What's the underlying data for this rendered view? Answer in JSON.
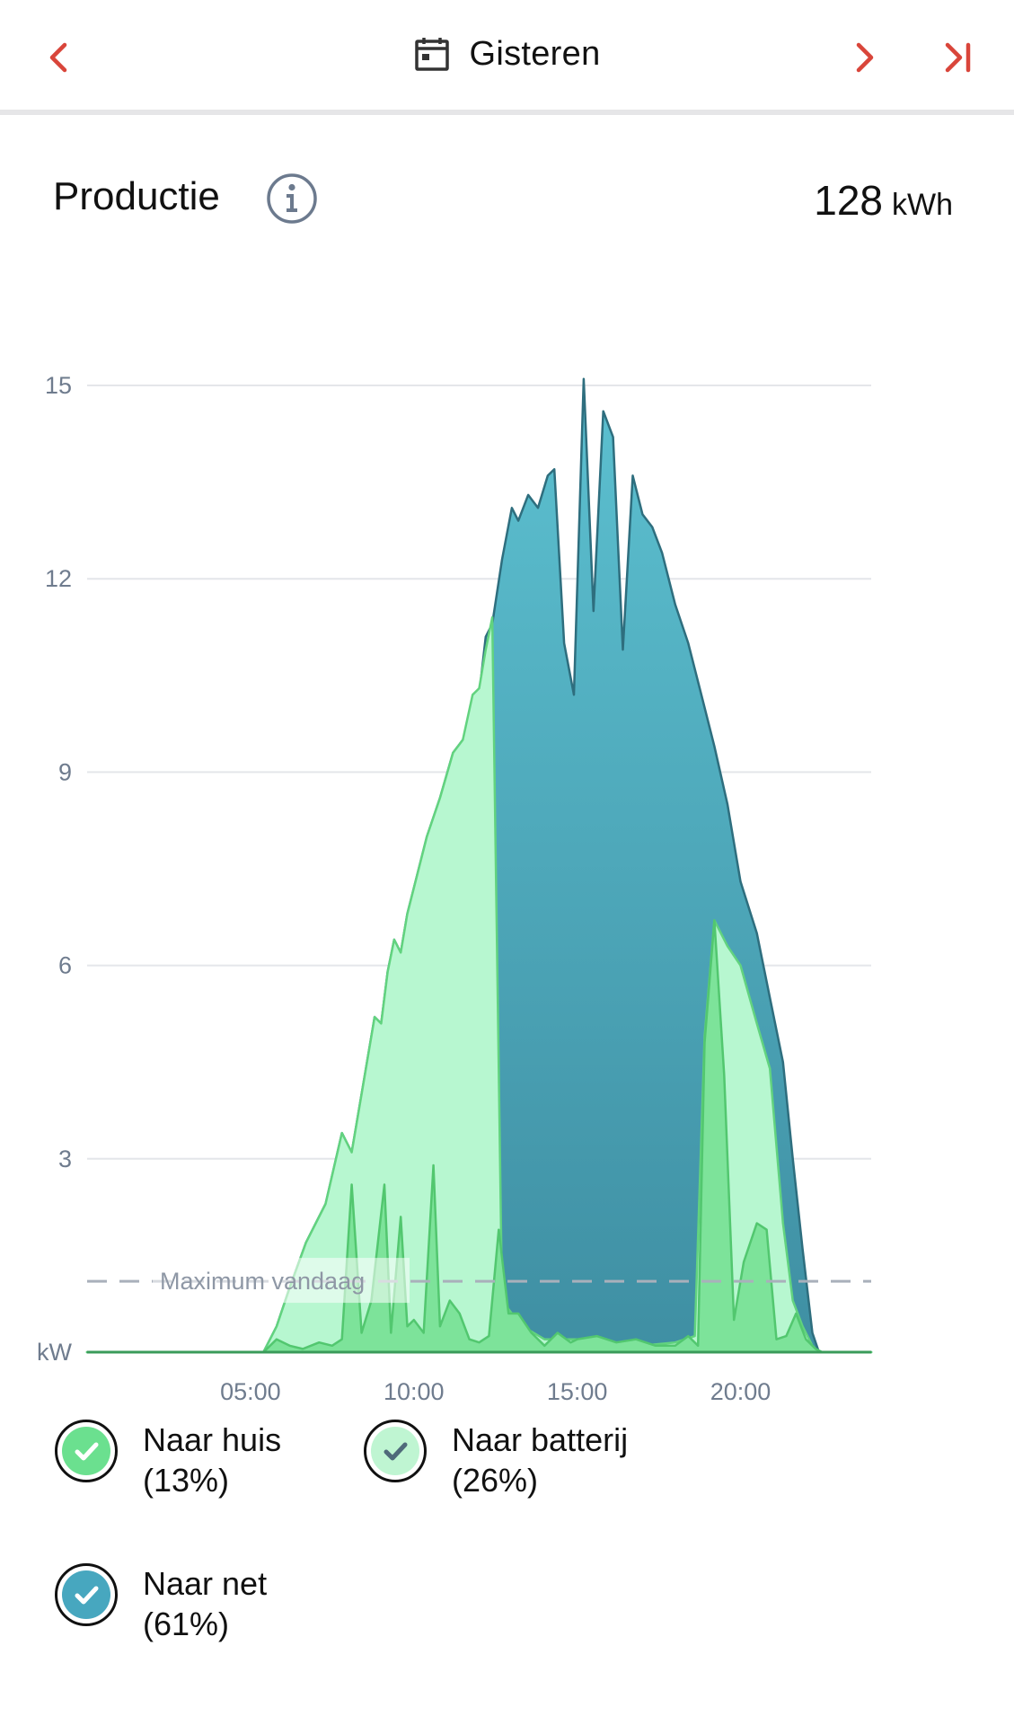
{
  "header": {
    "prev_icon": "chevron-left-icon",
    "date_icon": "calendar-icon",
    "date_label": "Gisteren",
    "next_icon": "chevron-right-icon",
    "last_icon": "skip-to-end-icon",
    "accent_color": "#d9453a"
  },
  "section": {
    "title": "Productie",
    "info_icon": "info-icon",
    "total_value": "128",
    "total_unit": "kWh"
  },
  "chart_data": {
    "type": "area",
    "x_unit": "hours",
    "x_range": [
      0,
      24
    ],
    "y_range": [
      0,
      15
    ],
    "y_unit_label": "kW",
    "y_ticks": [
      {
        "value": 15,
        "label": "15"
      },
      {
        "value": 12,
        "label": "12"
      },
      {
        "value": 9,
        "label": "9"
      },
      {
        "value": 6,
        "label": "6"
      },
      {
        "value": 3,
        "label": "3"
      }
    ],
    "x_ticks": [
      {
        "value": 5,
        "label": "05:00"
      },
      {
        "value": 10,
        "label": "10:00"
      },
      {
        "value": 15,
        "label": "15:00"
      },
      {
        "value": 20,
        "label": "20:00"
      }
    ],
    "grid": true,
    "reference_line": {
      "label": "Maximum vandaag",
      "value": 1.1,
      "style": "dashed",
      "color": "#a9b0bb"
    },
    "series": [
      {
        "name": "Naar net",
        "color": "#4bafc0",
        "stroke": "#2e6e7e",
        "points": [
          [
            0,
            0
          ],
          [
            5.4,
            0
          ],
          [
            5.8,
            0.4
          ],
          [
            6.2,
            1.0
          ],
          [
            6.7,
            1.7
          ],
          [
            7.3,
            2.3
          ],
          [
            7.8,
            3.4
          ],
          [
            8.1,
            3.1
          ],
          [
            8.5,
            4.3
          ],
          [
            8.8,
            5.2
          ],
          [
            9.0,
            5.1
          ],
          [
            9.2,
            5.9
          ],
          [
            9.4,
            6.4
          ],
          [
            9.6,
            6.2
          ],
          [
            9.8,
            6.8
          ],
          [
            10.1,
            7.4
          ],
          [
            10.4,
            8.0
          ],
          [
            10.8,
            8.6
          ],
          [
            11.2,
            9.3
          ],
          [
            11.5,
            9.5
          ],
          [
            11.8,
            9.7
          ],
          [
            12.0,
            10.2
          ],
          [
            12.2,
            11.1
          ],
          [
            12.4,
            11.3
          ],
          [
            12.7,
            12.3
          ],
          [
            13.0,
            13.1
          ],
          [
            13.2,
            12.9
          ],
          [
            13.5,
            13.3
          ],
          [
            13.8,
            13.1
          ],
          [
            14.1,
            13.6
          ],
          [
            14.3,
            13.7
          ],
          [
            14.6,
            11.0
          ],
          [
            14.9,
            10.2
          ],
          [
            15.2,
            15.1
          ],
          [
            15.5,
            11.5
          ],
          [
            15.8,
            14.6
          ],
          [
            16.1,
            14.2
          ],
          [
            16.4,
            10.9
          ],
          [
            16.7,
            13.6
          ],
          [
            17.0,
            13.0
          ],
          [
            17.3,
            12.8
          ],
          [
            17.6,
            12.4
          ],
          [
            18.0,
            11.6
          ],
          [
            18.4,
            11.0
          ],
          [
            18.8,
            10.2
          ],
          [
            19.2,
            9.4
          ],
          [
            19.6,
            8.5
          ],
          [
            20.0,
            7.3
          ],
          [
            20.5,
            6.5
          ],
          [
            20.9,
            5.5
          ],
          [
            21.3,
            4.5
          ],
          [
            21.6,
            3.0
          ],
          [
            21.9,
            1.6
          ],
          [
            22.2,
            0.3
          ],
          [
            22.4,
            0
          ],
          [
            24,
            0
          ]
        ]
      },
      {
        "name": "Naar batterij",
        "color": "#b7f7d0",
        "stroke": "#62d37f",
        "points": [
          [
            0,
            0
          ],
          [
            5.4,
            0
          ],
          [
            5.8,
            0.4
          ],
          [
            6.2,
            1.0
          ],
          [
            6.7,
            1.7
          ],
          [
            7.3,
            2.3
          ],
          [
            7.8,
            3.4
          ],
          [
            8.1,
            3.1
          ],
          [
            8.5,
            4.3
          ],
          [
            8.8,
            5.2
          ],
          [
            9.0,
            5.1
          ],
          [
            9.2,
            5.9
          ],
          [
            9.4,
            6.4
          ],
          [
            9.6,
            6.2
          ],
          [
            9.8,
            6.8
          ],
          [
            10.1,
            7.4
          ],
          [
            10.4,
            8.0
          ],
          [
            10.8,
            8.6
          ],
          [
            11.2,
            9.3
          ],
          [
            11.5,
            9.5
          ],
          [
            11.8,
            10.2
          ],
          [
            12.0,
            10.3
          ],
          [
            12.2,
            10.9
          ],
          [
            12.4,
            11.4
          ],
          [
            12.7,
            0.8
          ],
          [
            13.0,
            0.6
          ],
          [
            13.5,
            0.35
          ],
          [
            14.0,
            0.2
          ],
          [
            15,
            0.2
          ],
          [
            16,
            0.15
          ],
          [
            17,
            0.1
          ],
          [
            18,
            0.15
          ],
          [
            18.6,
            0.25
          ],
          [
            18.9,
            4.9
          ],
          [
            19.2,
            6.7
          ],
          [
            19.6,
            6.3
          ],
          [
            20.0,
            6.0
          ],
          [
            20.5,
            5.1
          ],
          [
            20.9,
            4.4
          ],
          [
            21.3,
            2.0
          ],
          [
            21.6,
            0.8
          ],
          [
            21.9,
            0.4
          ],
          [
            22.2,
            0.1
          ],
          [
            22.4,
            0
          ],
          [
            24,
            0
          ]
        ]
      },
      {
        "name": "Naar huis",
        "color": "#7de39a",
        "stroke": "#52c76f",
        "points": [
          [
            0,
            0
          ],
          [
            5.4,
            0
          ],
          [
            5.8,
            0.2
          ],
          [
            6.2,
            0.1
          ],
          [
            6.6,
            0.05
          ],
          [
            7.1,
            0.15
          ],
          [
            7.5,
            0.1
          ],
          [
            7.8,
            0.2
          ],
          [
            8.1,
            2.6
          ],
          [
            8.4,
            0.3
          ],
          [
            8.7,
            0.8
          ],
          [
            9.1,
            2.6
          ],
          [
            9.3,
            0.3
          ],
          [
            9.6,
            2.1
          ],
          [
            9.8,
            0.4
          ],
          [
            10.0,
            0.5
          ],
          [
            10.3,
            0.3
          ],
          [
            10.6,
            2.9
          ],
          [
            10.8,
            0.4
          ],
          [
            11.1,
            0.8
          ],
          [
            11.4,
            0.6
          ],
          [
            11.7,
            0.2
          ],
          [
            12.0,
            0.15
          ],
          [
            12.3,
            0.25
          ],
          [
            12.6,
            1.9
          ],
          [
            12.9,
            0.6
          ],
          [
            13.2,
            0.6
          ],
          [
            13.6,
            0.3
          ],
          [
            14.0,
            0.1
          ],
          [
            14.4,
            0.3
          ],
          [
            14.8,
            0.15
          ],
          [
            15,
            0.2
          ],
          [
            15.6,
            0.25
          ],
          [
            16.2,
            0.15
          ],
          [
            16.8,
            0.2
          ],
          [
            17.4,
            0.1
          ],
          [
            18,
            0.1
          ],
          [
            18.4,
            0.25
          ],
          [
            18.7,
            0.1
          ],
          [
            18.9,
            4.8
          ],
          [
            19.2,
            6.7
          ],
          [
            19.5,
            4.3
          ],
          [
            19.8,
            0.5
          ],
          [
            20.1,
            1.4
          ],
          [
            20.5,
            2.0
          ],
          [
            20.8,
            1.9
          ],
          [
            21.1,
            0.2
          ],
          [
            21.4,
            0.25
          ],
          [
            21.7,
            0.6
          ],
          [
            22.0,
            0.2
          ],
          [
            22.3,
            0.05
          ],
          [
            22.5,
            0
          ],
          [
            24,
            0
          ]
        ]
      }
    ]
  },
  "legend": [
    {
      "name": "Naar huis",
      "percent": "(13%)",
      "icon": "check-circle-icon",
      "fill": "#6be08f",
      "check": "#ffffff"
    },
    {
      "name": "Naar batterij",
      "percent": "(26%)",
      "icon": "check-circle-icon",
      "fill": "#bff5d2",
      "check": "#4f6a7a"
    },
    {
      "name": "Naar net",
      "percent": "(61%)",
      "icon": "check-circle-icon",
      "fill": "#47a7bf",
      "check": "#ffffff"
    }
  ]
}
